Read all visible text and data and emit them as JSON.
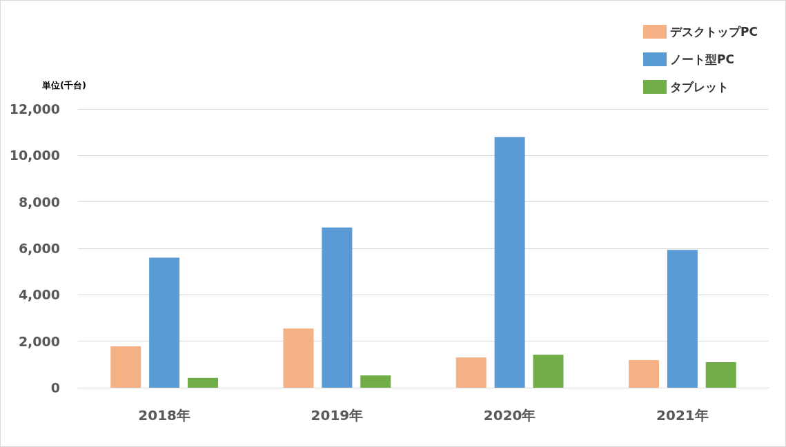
{
  "chart_data": {
    "type": "bar",
    "ylabel": "単位(千台)",
    "categories": [
      "2018年",
      "2019年",
      "2020年",
      "2021年"
    ],
    "series": [
      {
        "name": "デスクトップPC",
        "color": "#f4b183",
        "values": [
          1780,
          2550,
          1300,
          1190
        ]
      },
      {
        "name": "ノート型PC",
        "color": "#5b9bd5",
        "values": [
          5600,
          6900,
          10790,
          5930
        ]
      },
      {
        "name": "タブレット",
        "color": "#70ad47",
        "values": [
          420,
          530,
          1420,
          1100
        ]
      }
    ],
    "ylim": [
      0,
      12000
    ],
    "yticks": [
      0,
      {
        "value": 2000,
        "label": "2,000"
      },
      {
        "value": 4000,
        "label": "4,000"
      },
      {
        "value": 6000,
        "label": "6,000"
      },
      {
        "value": 8000,
        "label": "8,000"
      },
      {
        "value": 10000,
        "label": "10,000"
      },
      {
        "value": 12000,
        "label": "12,000"
      }
    ],
    "grid": "y",
    "legend": "top right"
  }
}
